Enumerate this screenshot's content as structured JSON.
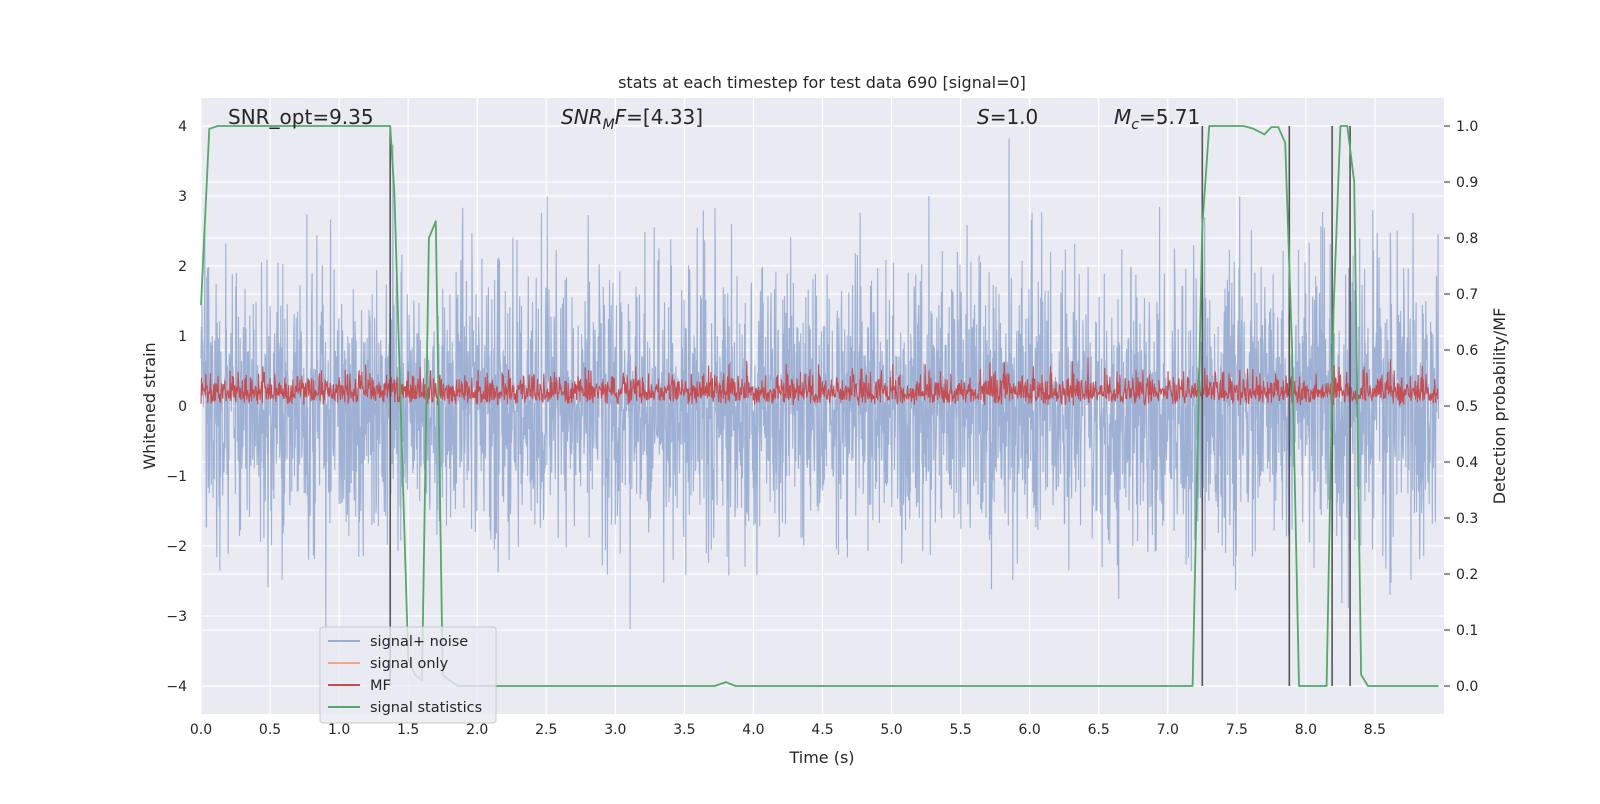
{
  "chart_data": {
    "type": "line",
    "title": "stats at each timestep for test data 690 [signal=0]",
    "xlabel": "Time (s)",
    "ylabel": "Whitened strain",
    "y2label": "Detection probability/MF",
    "xlim": [
      0.0,
      9.0
    ],
    "ylim": [
      -4.4,
      4.4
    ],
    "y2lim": [
      -0.05,
      1.05
    ],
    "x_ticks": [
      0.0,
      0.5,
      1.0,
      1.5,
      2.0,
      2.5,
      3.0,
      3.5,
      4.0,
      4.5,
      5.0,
      5.5,
      6.0,
      6.5,
      7.0,
      7.5,
      8.0,
      8.5
    ],
    "x_tick_labels": [
      "0.0",
      "0.5",
      "1.0",
      "1.5",
      "2.0",
      "2.5",
      "3.0",
      "3.5",
      "4.0",
      "4.5",
      "5.0",
      "5.5",
      "6.0",
      "6.5",
      "7.0",
      "7.5",
      "8.0",
      "8.5"
    ],
    "y_ticks": [
      -4,
      -3,
      -2,
      -1,
      0,
      1,
      2,
      3,
      4
    ],
    "y_tick_labels": [
      "−4",
      "−3",
      "−2",
      "−1",
      "0",
      "1",
      "2",
      "3",
      "4"
    ],
    "y2_ticks": [
      0.0,
      0.1,
      0.2,
      0.3,
      0.4,
      0.5,
      0.6,
      0.7,
      0.8,
      0.9,
      1.0
    ],
    "y2_tick_labels": [
      "0.0",
      "0.1",
      "0.2",
      "0.3",
      "0.4",
      "0.5",
      "0.6",
      "0.7",
      "0.8",
      "0.9",
      "1.0"
    ],
    "grid": true,
    "legend_position": "lower-left",
    "annotations": {
      "snr_opt": "SNR_opt=9.35",
      "snr_mf_base": "SNR",
      "snr_mf_sub": "M",
      "snr_mf_rest": "F=[4.33]",
      "s_italic": "S",
      "s_rest": "=1.0",
      "mc_base": "M",
      "mc_sub": "c",
      "mc_rest": "=5.71"
    },
    "series": [
      {
        "name": "signal+ noise",
        "axis": "left",
        "color": "#9aaed2",
        "style": "dense noise",
        "typical_amplitude": 1.6,
        "min": -3.9,
        "max": 3.9
      },
      {
        "name": "signal only",
        "axis": "left",
        "color": "#eea98b",
        "values": []
      },
      {
        "name": "MF",
        "axis": "right",
        "color": "#c44e52",
        "style": "dense noise",
        "baseline": 0.5,
        "max": 0.62
      },
      {
        "name": "signal statistics",
        "axis": "right",
        "color": "#55a868",
        "x": [
          0.0,
          0.06,
          0.12,
          0.5,
          1.0,
          1.32,
          1.37,
          1.4,
          1.45,
          1.5,
          1.55,
          1.6,
          1.65,
          1.7,
          1.75,
          1.8,
          1.86,
          1.95,
          2.5,
          3.0,
          3.5,
          3.72,
          3.8,
          3.87,
          4.5,
          5.5,
          6.5,
          7.0,
          7.18,
          7.25,
          7.3,
          7.55,
          7.62,
          7.7,
          7.75,
          7.8,
          7.85,
          7.9,
          7.95,
          8.0,
          8.05,
          8.15,
          8.2,
          8.25,
          8.3,
          8.35,
          8.4,
          8.45,
          8.55,
          8.96
        ],
        "values": [
          0.68,
          0.995,
          1.0,
          1.0,
          1.0,
          1.0,
          1.0,
          0.88,
          0.46,
          0.05,
          0.02,
          0.01,
          0.8,
          0.83,
          0.02,
          0.01,
          0.0,
          0.0,
          0.0,
          0.0,
          0.0,
          0.0,
          0.007,
          0.0,
          0.0,
          0.0,
          0.0,
          0.0,
          0.0,
          0.82,
          1.0,
          1.0,
          0.995,
          0.985,
          0.998,
          0.998,
          0.97,
          0.6,
          0.0,
          0.0,
          0.0,
          0.0,
          0.67,
          1.0,
          1.0,
          0.9,
          0.02,
          0.0,
          0.0,
          0.0
        ]
      }
    ],
    "vertical_lines": {
      "color": "#555555",
      "x": [
        1.37,
        7.25,
        7.88,
        8.19,
        8.32
      ]
    }
  }
}
